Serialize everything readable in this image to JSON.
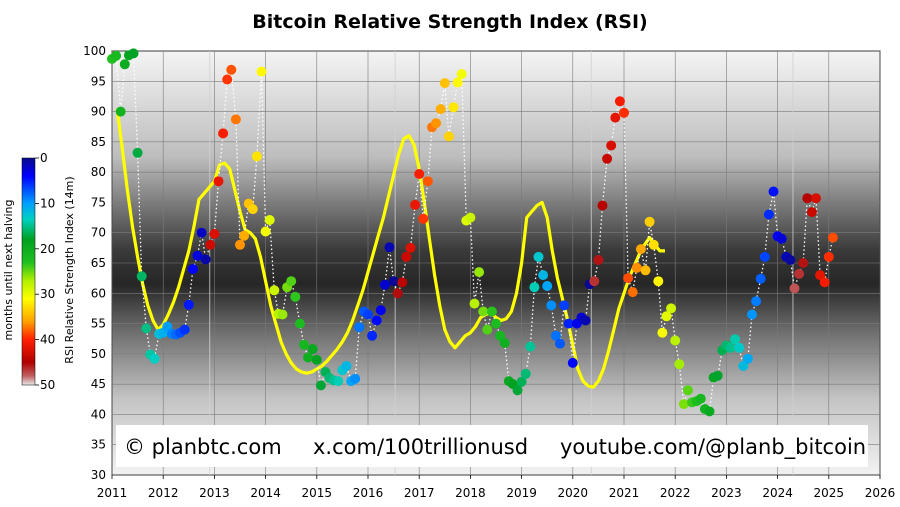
{
  "chart_data": {
    "type": "scatter",
    "title": "Bitcoin Relative Strength Index (RSI)",
    "ylabel": "RSI Relative Strength Index (14m)",
    "colorbar_label": "months until next halving",
    "colorbar_ticks": [
      "0",
      "10",
      "20",
      "30",
      "40",
      "50"
    ],
    "xlim": [
      2011,
      2026
    ],
    "ylim": [
      30,
      100
    ],
    "x_ticks": [
      "2011",
      "2012",
      "2013",
      "2014",
      "2015",
      "2016",
      "2017",
      "2018",
      "2019",
      "2020",
      "2021",
      "2022",
      "2023",
      "2024",
      "2025",
      "2026"
    ],
    "y_ticks": [
      "30",
      "35",
      "40",
      "45",
      "50",
      "55",
      "60",
      "65",
      "70",
      "75",
      "80",
      "85",
      "90",
      "95",
      "100"
    ],
    "grid": true,
    "halvings": [
      2012.91,
      2016.53,
      2020.36,
      2024.3
    ],
    "annotations": [
      "© planbtc.com",
      "x.com/100trillionusd",
      "youtube.com/@planb_bitcoin"
    ],
    "series": [
      {
        "values": [
          [
            2011.0,
            98.7
          ],
          [
            2011.08,
            99.2
          ],
          [
            2011.17,
            90.0
          ],
          [
            2011.25,
            97.8
          ],
          [
            2011.33,
            99.3
          ],
          [
            2011.42,
            99.6
          ],
          [
            2011.5,
            83.2
          ],
          [
            2011.58,
            62.8
          ],
          [
            2011.67,
            54.2
          ],
          [
            2011.75,
            49.9
          ],
          [
            2011.83,
            49.2
          ],
          [
            2011.92,
            53.3
          ],
          [
            2012.0,
            53.5
          ],
          [
            2012.08,
            54.5
          ],
          [
            2012.17,
            53.3
          ],
          [
            2012.25,
            53.2
          ],
          [
            2012.33,
            53.5
          ],
          [
            2012.42,
            54.0
          ],
          [
            2012.5,
            58.1
          ],
          [
            2012.58,
            64.0
          ],
          [
            2012.67,
            66.2
          ],
          [
            2012.75,
            70.0
          ],
          [
            2012.83,
            65.6
          ],
          [
            2012.92,
            68.0
          ],
          [
            2013.0,
            69.8
          ],
          [
            2013.08,
            78.5
          ],
          [
            2013.17,
            86.4
          ],
          [
            2013.25,
            95.3
          ],
          [
            2013.33,
            96.9
          ],
          [
            2013.42,
            88.7
          ],
          [
            2013.5,
            68.0
          ],
          [
            2013.58,
            69.5
          ],
          [
            2013.67,
            74.8
          ],
          [
            2013.75,
            73.9
          ],
          [
            2013.83,
            82.6
          ],
          [
            2013.92,
            96.6
          ],
          [
            2014.0,
            70.2
          ],
          [
            2014.08,
            72.1
          ],
          [
            2014.17,
            60.5
          ],
          [
            2014.25,
            56.6
          ],
          [
            2014.33,
            56.5
          ],
          [
            2014.42,
            61.0
          ],
          [
            2014.5,
            62.0
          ],
          [
            2014.58,
            59.4
          ],
          [
            2014.67,
            55.0
          ],
          [
            2014.75,
            51.5
          ],
          [
            2014.83,
            49.4
          ],
          [
            2014.92,
            50.8
          ],
          [
            2015.0,
            49.0
          ],
          [
            2015.08,
            44.8
          ],
          [
            2015.17,
            47.0
          ],
          [
            2015.25,
            46.0
          ],
          [
            2015.33,
            45.6
          ],
          [
            2015.42,
            45.5
          ],
          [
            2015.5,
            47.3
          ],
          [
            2015.58,
            48.0
          ],
          [
            2015.67,
            45.5
          ],
          [
            2015.75,
            45.9
          ],
          [
            2015.83,
            54.4
          ],
          [
            2015.92,
            57.0
          ],
          [
            2016.0,
            56.5
          ],
          [
            2016.08,
            53.0
          ],
          [
            2016.17,
            55.5
          ],
          [
            2016.25,
            57.2
          ],
          [
            2016.33,
            61.4
          ],
          [
            2016.42,
            67.6
          ],
          [
            2016.5,
            62.0
          ],
          [
            2016.58,
            60.0
          ],
          [
            2016.67,
            61.8
          ],
          [
            2016.75,
            66.0
          ],
          [
            2016.83,
            67.5
          ],
          [
            2016.92,
            74.6
          ],
          [
            2017.0,
            79.7
          ],
          [
            2017.08,
            72.3
          ],
          [
            2017.17,
            78.5
          ],
          [
            2017.25,
            87.4
          ],
          [
            2017.33,
            88.1
          ],
          [
            2017.42,
            90.4
          ],
          [
            2017.5,
            94.7
          ],
          [
            2017.58,
            85.9
          ],
          [
            2017.67,
            90.7
          ],
          [
            2017.75,
            94.8
          ],
          [
            2017.83,
            96.2
          ],
          [
            2017.92,
            72.0
          ],
          [
            2018.0,
            72.5
          ],
          [
            2018.08,
            58.3
          ],
          [
            2018.17,
            63.5
          ],
          [
            2018.25,
            57.0
          ],
          [
            2018.33,
            54.0
          ],
          [
            2018.42,
            57.0
          ],
          [
            2018.5,
            55.0
          ],
          [
            2018.58,
            53.0
          ],
          [
            2018.67,
            51.8
          ],
          [
            2018.75,
            45.5
          ],
          [
            2018.83,
            45.0
          ],
          [
            2018.92,
            44.0
          ],
          [
            2019.0,
            45.4
          ],
          [
            2019.08,
            46.7
          ],
          [
            2019.17,
            51.2
          ],
          [
            2019.25,
            61.0
          ],
          [
            2019.33,
            66.0
          ],
          [
            2019.42,
            63.0
          ],
          [
            2019.5,
            61.2
          ],
          [
            2019.58,
            58.0
          ],
          [
            2019.67,
            53.0
          ],
          [
            2019.75,
            51.7
          ],
          [
            2019.83,
            58.0
          ],
          [
            2019.92,
            55.0
          ],
          [
            2020.0,
            48.5
          ],
          [
            2020.08,
            55.0
          ],
          [
            2020.17,
            56.0
          ],
          [
            2020.25,
            55.5
          ],
          [
            2020.33,
            61.5
          ],
          [
            2020.42,
            62.0
          ],
          [
            2020.5,
            65.5
          ],
          [
            2020.58,
            74.5
          ],
          [
            2020.67,
            82.2
          ],
          [
            2020.75,
            84.4
          ],
          [
            2020.83,
            89.0
          ],
          [
            2020.92,
            91.7
          ],
          [
            2021.0,
            89.8
          ],
          [
            2021.08,
            62.5
          ],
          [
            2021.17,
            60.2
          ],
          [
            2021.25,
            64.2
          ],
          [
            2021.33,
            67.3
          ],
          [
            2021.42,
            63.8
          ],
          [
            2021.5,
            71.8
          ],
          [
            2021.58,
            68.0
          ],
          [
            2021.67,
            62.0
          ],
          [
            2021.75,
            53.5
          ],
          [
            2021.83,
            56.2
          ],
          [
            2021.92,
            57.5
          ],
          [
            2022.0,
            52.2
          ],
          [
            2022.08,
            48.3
          ],
          [
            2022.17,
            41.7
          ],
          [
            2022.25,
            44.0
          ],
          [
            2022.33,
            42.0
          ],
          [
            2022.42,
            42.2
          ],
          [
            2022.5,
            42.6
          ],
          [
            2022.58,
            40.9
          ],
          [
            2022.67,
            40.5
          ],
          [
            2022.75,
            46.1
          ],
          [
            2022.83,
            46.4
          ],
          [
            2022.92,
            50.6
          ],
          [
            2023.0,
            51.4
          ],
          [
            2023.08,
            51.0
          ],
          [
            2023.17,
            52.4
          ],
          [
            2023.25,
            51.0
          ],
          [
            2023.33,
            48.0
          ],
          [
            2023.42,
            49.2
          ],
          [
            2023.5,
            56.5
          ],
          [
            2023.58,
            58.7
          ],
          [
            2023.67,
            62.4
          ],
          [
            2023.75,
            66.0
          ],
          [
            2023.83,
            73.0
          ],
          [
            2023.92,
            76.8
          ],
          [
            2024.0,
            69.4
          ],
          [
            2024.08,
            69.0
          ],
          [
            2024.17,
            66.0
          ],
          [
            2024.25,
            65.5
          ],
          [
            2024.33,
            60.8
          ],
          [
            2024.42,
            63.2
          ],
          [
            2024.5,
            65.0
          ],
          [
            2024.58,
            75.7
          ],
          [
            2024.67,
            73.4
          ],
          [
            2024.75,
            75.7
          ],
          [
            2024.83,
            63.0
          ],
          [
            2024.92,
            61.8
          ],
          [
            2025.0,
            66.0
          ],
          [
            2025.08,
            69.2
          ]
        ]
      },
      {
        "values": [
          [
            2011.1,
            90.5
          ],
          [
            2011.2,
            84.0
          ],
          [
            2011.3,
            77.0
          ],
          [
            2011.4,
            71.0
          ],
          [
            2011.5,
            66.0
          ],
          [
            2011.6,
            61.5
          ],
          [
            2011.7,
            58.0
          ],
          [
            2011.8,
            55.5
          ],
          [
            2011.9,
            54.0
          ],
          [
            2012.0,
            54.8
          ],
          [
            2012.1,
            56.5
          ],
          [
            2012.2,
            58.5
          ],
          [
            2012.3,
            61.0
          ],
          [
            2012.4,
            64.0
          ],
          [
            2012.5,
            67.0
          ],
          [
            2012.6,
            71.0
          ],
          [
            2012.7,
            75.5
          ],
          [
            2012.8,
            76.5
          ],
          [
            2012.9,
            77.5
          ],
          [
            2013.0,
            78.5
          ],
          [
            2013.1,
            81.2
          ],
          [
            2013.2,
            81.5
          ],
          [
            2013.3,
            80.5
          ],
          [
            2013.4,
            77.0
          ],
          [
            2013.5,
            73.5
          ],
          [
            2013.6,
            70.5
          ],
          [
            2013.7,
            70.0
          ],
          [
            2013.8,
            69.0
          ],
          [
            2013.9,
            66.0
          ],
          [
            2014.0,
            62.0
          ],
          [
            2014.1,
            58.0
          ],
          [
            2014.2,
            55.0
          ],
          [
            2014.3,
            52.0
          ],
          [
            2014.4,
            50.0
          ],
          [
            2014.5,
            48.5
          ],
          [
            2014.6,
            47.5
          ],
          [
            2014.7,
            47.0
          ],
          [
            2014.8,
            46.8
          ],
          [
            2014.9,
            47.0
          ],
          [
            2015.0,
            47.5
          ],
          [
            2015.1,
            48.0
          ],
          [
            2015.2,
            48.8
          ],
          [
            2015.3,
            49.8
          ],
          [
            2015.4,
            50.8
          ],
          [
            2015.5,
            52.0
          ],
          [
            2015.6,
            53.5
          ],
          [
            2015.7,
            55.5
          ],
          [
            2015.8,
            58.0
          ],
          [
            2015.9,
            60.5
          ],
          [
            2016.0,
            63.5
          ],
          [
            2016.1,
            66.5
          ],
          [
            2016.2,
            69.5
          ],
          [
            2016.3,
            72.5
          ],
          [
            2016.4,
            76.0
          ],
          [
            2016.5,
            79.5
          ],
          [
            2016.6,
            83.0
          ],
          [
            2016.7,
            85.5
          ],
          [
            2016.8,
            86.0
          ],
          [
            2016.9,
            84.5
          ],
          [
            2017.0,
            80.5
          ],
          [
            2017.1,
            75.0
          ],
          [
            2017.2,
            69.0
          ],
          [
            2017.3,
            63.0
          ],
          [
            2017.4,
            58.0
          ],
          [
            2017.5,
            54.0
          ],
          [
            2017.6,
            52.0
          ],
          [
            2017.7,
            51.0
          ],
          [
            2017.8,
            52.0
          ],
          [
            2017.9,
            53.0
          ],
          [
            2018.0,
            53.5
          ],
          [
            2018.1,
            54.5
          ],
          [
            2018.2,
            56.0
          ],
          [
            2018.3,
            56.5
          ],
          [
            2018.4,
            56.8
          ],
          [
            2018.5,
            56.0
          ],
          [
            2018.6,
            55.5
          ],
          [
            2018.7,
            55.8
          ],
          [
            2018.8,
            57.0
          ],
          [
            2018.9,
            60.0
          ],
          [
            2019.0,
            65.0
          ],
          [
            2019.1,
            72.5
          ],
          [
            2019.2,
            73.5
          ],
          [
            2019.3,
            74.5
          ],
          [
            2019.4,
            75.0
          ],
          [
            2019.5,
            72.5
          ],
          [
            2019.6,
            67.0
          ],
          [
            2019.7,
            62.5
          ],
          [
            2019.8,
            59.0
          ],
          [
            2019.9,
            55.5
          ],
          [
            2020.0,
            51.5
          ],
          [
            2020.1,
            47.5
          ],
          [
            2020.2,
            45.5
          ],
          [
            2020.3,
            44.7
          ],
          [
            2020.4,
            44.5
          ],
          [
            2020.5,
            45.5
          ],
          [
            2020.6,
            47.5
          ],
          [
            2020.7,
            50.5
          ],
          [
            2020.8,
            54.0
          ],
          [
            2020.9,
            57.5
          ],
          [
            2021.0,
            60.0
          ],
          [
            2021.1,
            62.5
          ],
          [
            2021.2,
            64.5
          ],
          [
            2021.3,
            66.5
          ],
          [
            2021.4,
            68.0
          ],
          [
            2021.5,
            69.2
          ],
          [
            2021.6,
            68.0
          ],
          [
            2021.7,
            67.0
          ],
          [
            2021.8,
            67.0
          ]
        ]
      }
    ]
  }
}
